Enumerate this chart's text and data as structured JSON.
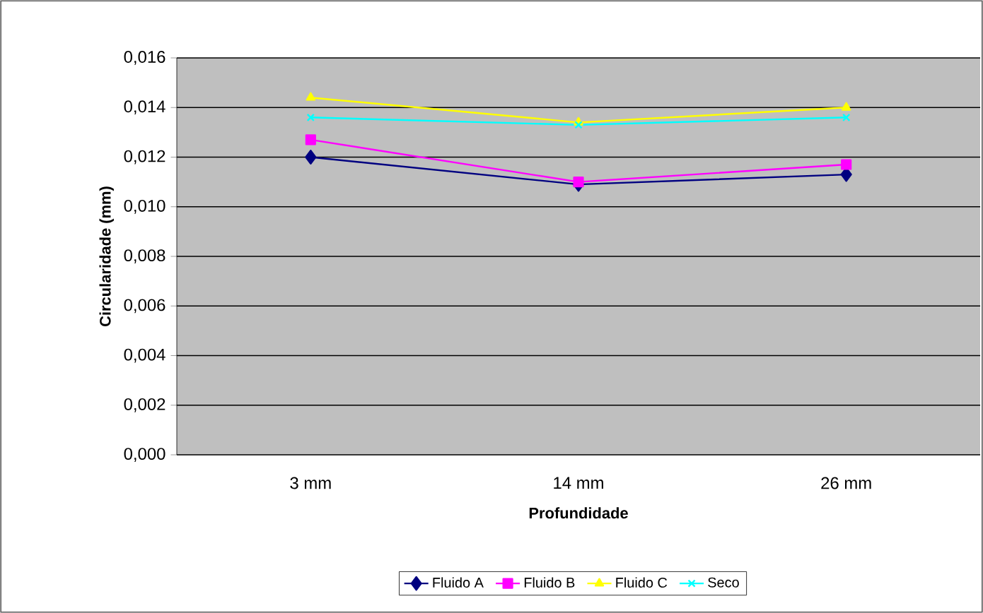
{
  "chart_data": {
    "type": "line",
    "xlabel": "Profundidade",
    "ylabel": "Circularidade (mm)",
    "categories": [
      "3 mm",
      "14 mm",
      "26 mm"
    ],
    "series": [
      {
        "name": "Fluido A",
        "color": "#000080",
        "marker": "diamond",
        "values": [
          0.012,
          0.0109,
          0.0113
        ]
      },
      {
        "name": "Fluido B",
        "color": "#ff00ff",
        "marker": "square",
        "values": [
          0.0127,
          0.011,
          0.0117
        ]
      },
      {
        "name": "Fluido C",
        "color": "#ffff00",
        "marker": "triangle",
        "values": [
          0.0144,
          0.0134,
          0.014
        ]
      },
      {
        "name": "Seco",
        "color": "#00ffff",
        "marker": "cross",
        "values": [
          0.0136,
          0.0133,
          0.0136
        ]
      }
    ],
    "ylim": [
      0,
      0.016
    ],
    "yticks": [
      {
        "value": 0,
        "label": "0,000"
      },
      {
        "value": 0.002,
        "label": "0,002"
      },
      {
        "value": 0.004,
        "label": "0,004"
      },
      {
        "value": 0.006,
        "label": "0,006"
      },
      {
        "value": 0.008,
        "label": "0,008"
      },
      {
        "value": 0.01,
        "label": "0,010"
      },
      {
        "value": 0.012,
        "label": "0,012"
      },
      {
        "value": 0.014,
        "label": "0,014"
      },
      {
        "value": 0.016,
        "label": "0,016"
      }
    ],
    "grid": "y",
    "legend": "bottom",
    "line_style": "solid"
  }
}
